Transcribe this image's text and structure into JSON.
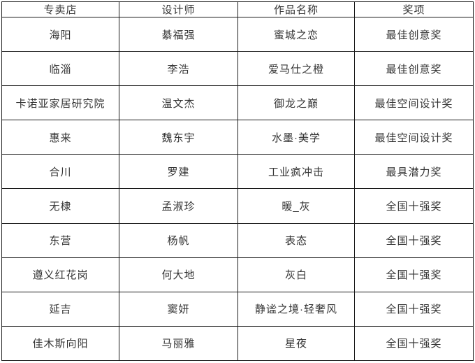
{
  "colors": {
    "background": "#ffffff",
    "border": "#1a1a1a",
    "text": "#333333"
  },
  "table": {
    "columns": [
      "专卖店",
      "设计师",
      "作品名称",
      "奖项"
    ],
    "rows": [
      [
        "海阳",
        "綦福强",
        "蜜城之恋",
        "最佳创意奖"
      ],
      [
        "临淄",
        "李浩",
        "爱马仕之橙",
        "最佳创意奖"
      ],
      [
        "卡诺亚家居研究院",
        "温文杰",
        "御龙之巅",
        "最佳空间设计奖"
      ],
      [
        "惠来",
        "魏东宇",
        "水墨·美学",
        "最佳空间设计奖"
      ],
      [
        "合川",
        "罗建",
        "工业疯冲击",
        "最具潜力奖"
      ],
      [
        "无棣",
        "孟淑珍",
        "暖_灰",
        "全国十强奖"
      ],
      [
        "东营",
        "杨帆",
        "表态",
        "全国十强奖"
      ],
      [
        "遵义红花岗",
        "何大地",
        "灰白",
        "全国十强奖"
      ],
      [
        "延吉",
        "窦妍",
        "静谧之境·轻奢风",
        "全国十强奖"
      ],
      [
        "佳木斯向阳",
        "马丽雅",
        "星夜",
        "全国十强奖"
      ]
    ]
  }
}
